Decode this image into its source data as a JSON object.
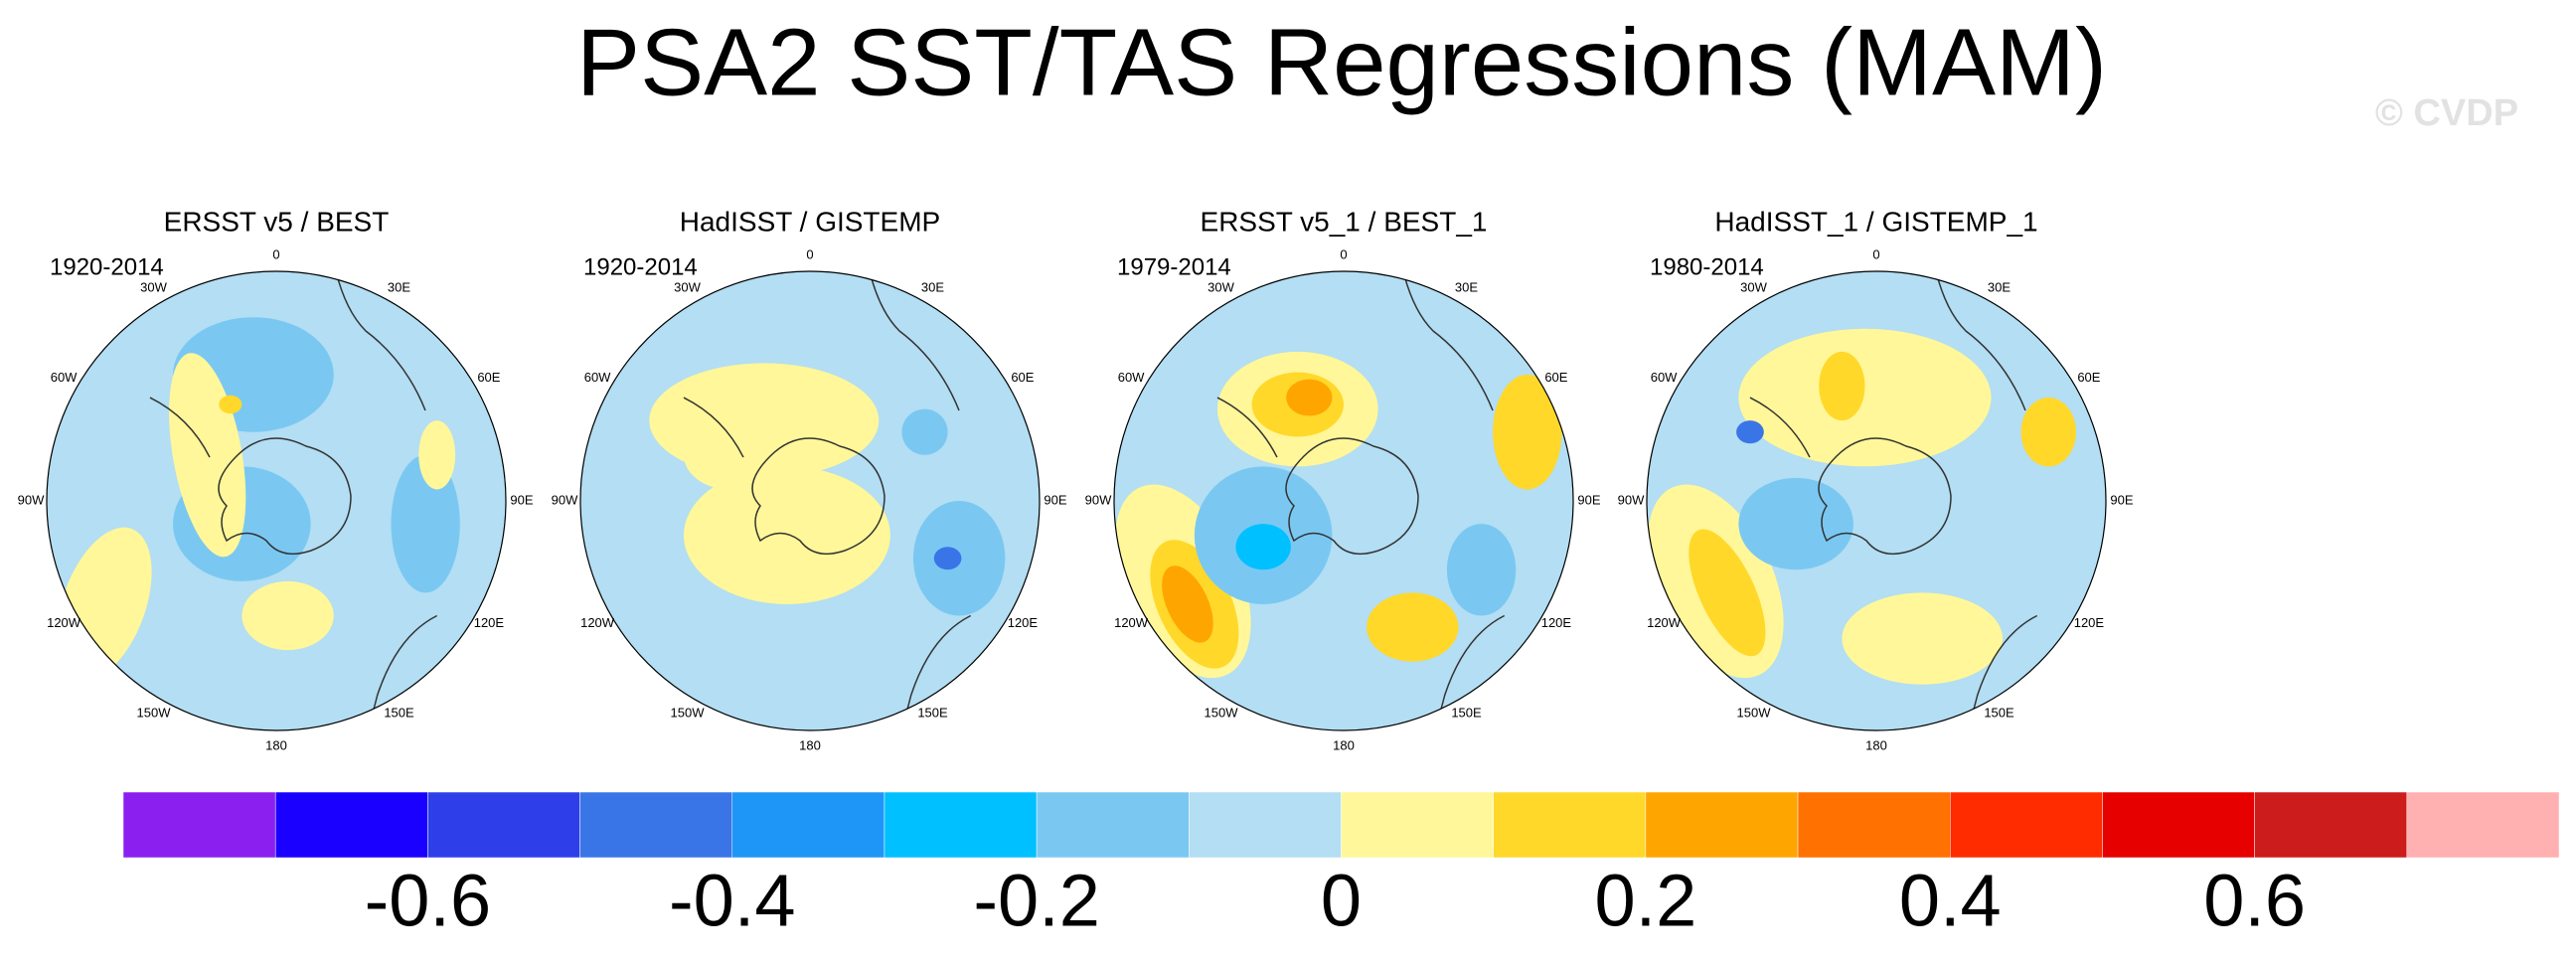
{
  "title": "PSA2 SST/TAS Regressions (MAM)",
  "watermark": "© CVDP",
  "longitude_labels": [
    "0",
    "30E",
    "60E",
    "90E",
    "120E",
    "150E",
    "180",
    "150W",
    "120W",
    "90W",
    "60W",
    "30W"
  ],
  "panels": [
    {
      "title": "ERSST v5 / BEST",
      "period": "1920-2014"
    },
    {
      "title": "HadISST / GISTEMP",
      "period": "1920-2014"
    },
    {
      "title": "ERSST v5_1 / BEST_1",
      "period": "1979-2014"
    },
    {
      "title": "HadISST_1 / GISTEMP_1",
      "period": "1980-2014"
    }
  ],
  "colorbar": {
    "colors": [
      "#8b1fef",
      "#1a00ff",
      "#2e3fea",
      "#3a75e8",
      "#1e96f7",
      "#00c0ff",
      "#7ac8f2",
      "#b3def3",
      "#fff799",
      "#ffd82a",
      "#ffa500",
      "#ff7100",
      "#ff2c00",
      "#e60000",
      "#cc1c1c",
      "#ffb0b0"
    ],
    "xlim": [
      -0.8,
      0.8
    ],
    "xticks": [
      -0.6,
      -0.4,
      -0.2,
      0,
      0.2,
      0.4,
      0.6
    ]
  }
}
